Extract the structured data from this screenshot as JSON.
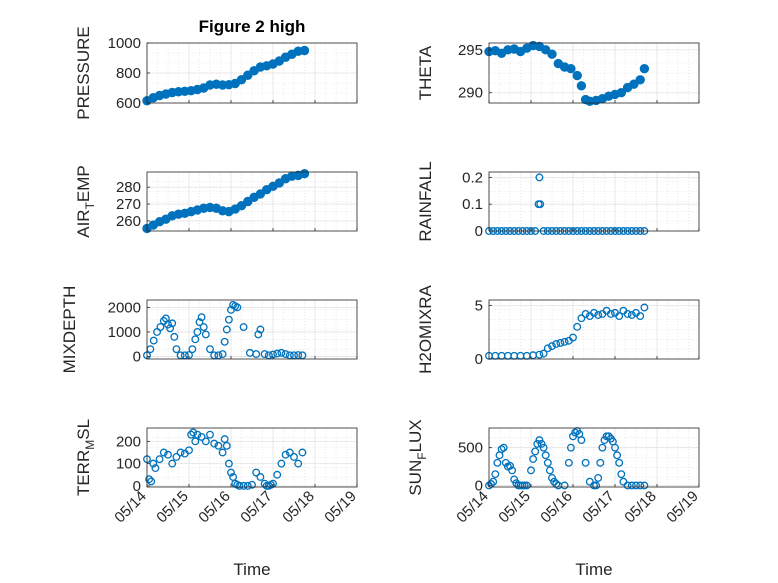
{
  "figure": {
    "title": "Figure 2 high",
    "xlabel": "Time",
    "xtick_labels": [
      "05/14",
      "05/15",
      "05/16",
      "05/17",
      "05/18",
      "05/19"
    ],
    "marker_color": "#0072BD"
  },
  "chart_data": [
    {
      "type": "scatter",
      "ylabel": "PRESSURE",
      "ylabel_sub": "",
      "ylabel_tail": "",
      "ylim": [
        600,
        1000
      ],
      "yticks": [
        600,
        800,
        1000
      ],
      "xlim": [
        0,
        5
      ],
      "grid": true,
      "marker": "filled",
      "x": [
        0.0,
        0.15,
        0.3,
        0.45,
        0.6,
        0.75,
        0.9,
        1.05,
        1.2,
        1.35,
        1.5,
        1.65,
        1.8,
        1.95,
        2.1,
        2.25,
        2.4,
        2.55,
        2.7,
        2.85,
        3.0,
        3.15,
        3.3,
        3.45,
        3.6,
        3.75
      ],
      "y": [
        615,
        635,
        650,
        660,
        670,
        675,
        678,
        682,
        690,
        700,
        720,
        725,
        720,
        722,
        730,
        755,
        785,
        815,
        840,
        848,
        860,
        880,
        905,
        925,
        945,
        950
      ]
    },
    {
      "type": "scatter",
      "ylabel": "THETA",
      "ylabel_sub": "",
      "ylabel_tail": "",
      "ylim": [
        288.8,
        295.8
      ],
      "yticks": [
        290,
        295
      ],
      "xlim": [
        0,
        5
      ],
      "grid": true,
      "marker": "filled",
      "x": [
        0.0,
        0.15,
        0.3,
        0.45,
        0.6,
        0.75,
        0.9,
        1.05,
        1.2,
        1.35,
        1.5,
        1.65,
        1.8,
        1.95,
        2.1,
        2.2,
        2.3,
        2.4,
        2.55,
        2.7,
        2.85,
        3.0,
        3.15,
        3.3,
        3.45,
        3.6,
        3.7
      ],
      "y": [
        294.8,
        294.9,
        294.6,
        295.0,
        295.1,
        294.8,
        295.2,
        295.5,
        295.4,
        295.0,
        294.5,
        293.4,
        293.0,
        292.8,
        292.0,
        290.8,
        289.2,
        289.0,
        289.1,
        289.3,
        289.6,
        289.8,
        290.0,
        290.6,
        291.0,
        291.5,
        292.8
      ]
    },
    {
      "type": "scatter",
      "ylabel": "AIR",
      "ylabel_sub": "T",
      "ylabel_tail": "EMP",
      "ylim": [
        254,
        289
      ],
      "yticks": [
        260,
        270,
        280
      ],
      "xlim": [
        0,
        5
      ],
      "grid": true,
      "marker": "filled",
      "x": [
        0.0,
        0.15,
        0.3,
        0.45,
        0.6,
        0.75,
        0.9,
        1.05,
        1.2,
        1.35,
        1.5,
        1.65,
        1.8,
        1.95,
        2.1,
        2.25,
        2.4,
        2.55,
        2.7,
        2.85,
        3.0,
        3.15,
        3.3,
        3.45,
        3.6,
        3.75
      ],
      "y": [
        255.5,
        257.5,
        259.5,
        261.0,
        263.0,
        264.0,
        264.5,
        265.5,
        266.5,
        267.5,
        268.0,
        267.5,
        266.0,
        265.5,
        267.0,
        269.0,
        271.5,
        274.0,
        276.0,
        278.5,
        280.5,
        282.5,
        285.0,
        286.5,
        287.0,
        288.0
      ]
    },
    {
      "type": "scatter",
      "ylabel": "RAINFALL",
      "ylabel_sub": "",
      "ylabel_tail": "",
      "ylim": [
        0,
        0.22
      ],
      "yticks": [
        0,
        0.1,
        0.2
      ],
      "xlim": [
        0,
        5
      ],
      "grid": true,
      "marker": "open",
      "x": [
        0.0,
        0.1,
        0.2,
        0.3,
        0.4,
        0.5,
        0.6,
        0.7,
        0.8,
        0.9,
        1.0,
        1.1,
        1.18,
        1.2,
        1.22,
        1.3,
        1.4,
        1.5,
        1.6,
        1.7,
        1.8,
        1.9,
        2.0,
        2.1,
        2.2,
        2.3,
        2.4,
        2.5,
        2.6,
        2.7,
        2.8,
        2.9,
        3.0,
        3.1,
        3.2,
        3.3,
        3.4,
        3.5,
        3.6,
        3.7
      ],
      "y": [
        0,
        0,
        0,
        0,
        0,
        0,
        0,
        0,
        0,
        0,
        0,
        0,
        0.1,
        0.2,
        0.1,
        0,
        0,
        0,
        0,
        0,
        0,
        0,
        0,
        0,
        0,
        0,
        0,
        0,
        0,
        0,
        0,
        0,
        0,
        0,
        0,
        0,
        0,
        0,
        0,
        0
      ]
    },
    {
      "type": "scatter",
      "ylabel": "MIXDEPTH",
      "ylabel_sub": "",
      "ylabel_tail": "",
      "ylim": [
        -100,
        2300
      ],
      "yticks": [
        0,
        1000,
        2000
      ],
      "xlim": [
        0,
        5
      ],
      "grid": true,
      "marker": "open",
      "x": [
        0.0,
        0.08,
        0.16,
        0.24,
        0.32,
        0.4,
        0.45,
        0.5,
        0.55,
        0.6,
        0.65,
        0.7,
        0.8,
        0.9,
        1.0,
        1.08,
        1.15,
        1.2,
        1.25,
        1.3,
        1.35,
        1.4,
        1.5,
        1.6,
        1.7,
        1.8,
        1.85,
        1.9,
        1.95,
        2.0,
        2.05,
        2.1,
        2.15,
        2.3,
        2.45,
        2.6,
        2.65,
        2.7,
        2.8,
        2.9,
        3.0,
        3.1,
        3.2,
        3.3,
        3.4,
        3.5,
        3.6,
        3.7
      ],
      "y": [
        50,
        300,
        650,
        1000,
        1200,
        1450,
        1550,
        1300,
        1150,
        1350,
        800,
        300,
        50,
        50,
        60,
        300,
        700,
        1000,
        1400,
        1600,
        1200,
        900,
        300,
        50,
        50,
        100,
        600,
        1100,
        1500,
        1900,
        2100,
        2050,
        2000,
        1200,
        150,
        100,
        900,
        1100,
        100,
        50,
        80,
        120,
        150,
        100,
        50,
        50,
        60,
        50
      ]
    },
    {
      "type": "scatter",
      "ylabel": "H2OMIXRA",
      "ylabel_sub": "",
      "ylabel_tail": "",
      "ylim": [
        0,
        5.5
      ],
      "yticks": [
        0,
        5
      ],
      "xlim": [
        0,
        5
      ],
      "grid": true,
      "marker": "open",
      "x": [
        0.0,
        0.15,
        0.3,
        0.45,
        0.6,
        0.75,
        0.9,
        1.05,
        1.2,
        1.3,
        1.4,
        1.5,
        1.6,
        1.7,
        1.8,
        1.9,
        2.0,
        2.1,
        2.2,
        2.3,
        2.4,
        2.5,
        2.6,
        2.7,
        2.8,
        2.9,
        3.0,
        3.1,
        3.2,
        3.3,
        3.4,
        3.5,
        3.6,
        3.7
      ],
      "y": [
        0.3,
        0.3,
        0.3,
        0.3,
        0.3,
        0.3,
        0.3,
        0.35,
        0.4,
        0.5,
        1.0,
        1.2,
        1.4,
        1.5,
        1.6,
        1.7,
        2.0,
        3.0,
        3.8,
        4.2,
        4.0,
        4.3,
        4.1,
        4.2,
        4.5,
        4.2,
        4.3,
        4.0,
        4.5,
        4.2,
        4.1,
        4.3,
        4.0,
        4.8
      ]
    },
    {
      "type": "scatter",
      "ylabel": "TERR",
      "ylabel_sub": "M",
      "ylabel_tail": "SL",
      "ylim": [
        -5,
        260
      ],
      "yticks": [
        0,
        100,
        200
      ],
      "xlim": [
        0,
        5
      ],
      "grid": true,
      "marker": "open",
      "x": [
        0.0,
        0.05,
        0.1,
        0.15,
        0.2,
        0.3,
        0.4,
        0.5,
        0.6,
        0.7,
        0.8,
        0.9,
        1.0,
        1.05,
        1.1,
        1.15,
        1.2,
        1.3,
        1.4,
        1.5,
        1.6,
        1.7,
        1.8,
        1.85,
        1.9,
        1.95,
        2.0,
        2.05,
        2.1,
        2.15,
        2.2,
        2.3,
        2.4,
        2.5,
        2.6,
        2.7,
        2.8,
        2.85,
        2.9,
        2.95,
        3.0,
        3.1,
        3.2,
        3.3,
        3.4,
        3.5,
        3.6,
        3.7
      ],
      "y": [
        120,
        30,
        20,
        100,
        80,
        120,
        150,
        140,
        100,
        130,
        150,
        145,
        160,
        230,
        240,
        200,
        230,
        220,
        200,
        230,
        190,
        180,
        150,
        210,
        180,
        100,
        60,
        40,
        10,
        5,
        0,
        0,
        0,
        5,
        60,
        40,
        10,
        0,
        0,
        5,
        10,
        50,
        100,
        140,
        150,
        130,
        100,
        150
      ]
    },
    {
      "type": "scatter",
      "ylabel": "SUN",
      "ylabel_sub": "F",
      "ylabel_tail": "LUX",
      "ylim": [
        -20,
        760
      ],
      "yticks": [
        0,
        500
      ],
      "xlim": [
        0,
        5
      ],
      "grid": true,
      "marker": "open",
      "x": [
        0.0,
        0.05,
        0.1,
        0.15,
        0.2,
        0.25,
        0.3,
        0.35,
        0.4,
        0.45,
        0.5,
        0.55,
        0.6,
        0.65,
        0.7,
        0.75,
        0.8,
        0.85,
        0.9,
        1.0,
        1.05,
        1.1,
        1.15,
        1.2,
        1.25,
        1.3,
        1.35,
        1.4,
        1.45,
        1.5,
        1.55,
        1.6,
        1.65,
        1.8,
        1.9,
        1.95,
        2.0,
        2.05,
        2.1,
        2.15,
        2.2,
        2.3,
        2.4,
        2.5,
        2.55,
        2.6,
        2.65,
        2.7,
        2.75,
        2.8,
        2.85,
        2.9,
        2.95,
        3.0,
        3.05,
        3.1,
        3.15,
        3.2,
        3.3,
        3.4,
        3.5,
        3.6,
        3.7
      ],
      "y": [
        0,
        20,
        50,
        150,
        300,
        400,
        480,
        500,
        300,
        250,
        260,
        200,
        80,
        30,
        0,
        0,
        0,
        0,
        0,
        200,
        350,
        450,
        550,
        600,
        550,
        500,
        400,
        300,
        200,
        100,
        50,
        20,
        0,
        0,
        300,
        500,
        650,
        700,
        720,
        680,
        600,
        300,
        50,
        0,
        0,
        100,
        300,
        500,
        600,
        650,
        650,
        620,
        580,
        500,
        400,
        300,
        150,
        50,
        0,
        0,
        0,
        0,
        0
      ]
    }
  ]
}
